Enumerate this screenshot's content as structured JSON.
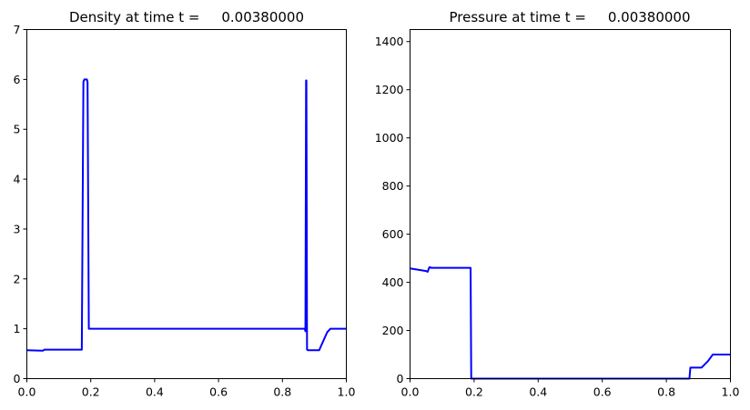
{
  "chart_data": [
    {
      "type": "line",
      "title": "Density at time t =     0.00380000",
      "xlim": [
        0.0,
        1.0
      ],
      "ylim": [
        0,
        7
      ],
      "xticks": [
        "0.0",
        "0.2",
        "0.4",
        "0.6",
        "0.8",
        "1.0"
      ],
      "yticks": [
        "0",
        "1",
        "2",
        "3",
        "4",
        "5",
        "6",
        "7"
      ],
      "grid": false,
      "series": [
        {
          "color": "#0000ff",
          "x": [
            0.0,
            0.05,
            0.055,
            0.172,
            0.177,
            0.18,
            0.188,
            0.19,
            0.194,
            0.86,
            0.87,
            0.872,
            0.874,
            0.875,
            0.877,
            0.88,
            0.9,
            0.915,
            0.94,
            0.95,
            1.0
          ],
          "y": [
            0.57,
            0.56,
            0.58,
            0.58,
            5.95,
            6.0,
            6.0,
            5.95,
            1.0,
            1.0,
            1.0,
            0.95,
            5.98,
            5.98,
            0.58,
            0.57,
            0.57,
            0.57,
            0.93,
            1.0,
            1.0
          ]
        }
      ]
    },
    {
      "type": "line",
      "title": "Pressure at time t =     0.00380000",
      "xlim": [
        0.0,
        1.0
      ],
      "ylim": [
        0,
        1450
      ],
      "xticks": [
        "0.0",
        "0.2",
        "0.4",
        "0.6",
        "0.8",
        "1.0"
      ],
      "yticks": [
        "0",
        "200",
        "400",
        "600",
        "800",
        "1000",
        "1200",
        "1400"
      ],
      "grid": false,
      "series": [
        {
          "color": "#0000ff",
          "x": [
            0.0,
            0.05,
            0.055,
            0.06,
            0.063,
            0.065,
            0.187,
            0.189,
            0.191,
            0.86,
            0.87,
            0.872,
            0.875,
            0.9,
            0.91,
            0.93,
            0.945,
            1.0
          ],
          "y": [
            458,
            447,
            444,
            462,
            463,
            460,
            460,
            460,
            0,
            0,
            0,
            0,
            46,
            46,
            46,
            73,
            100,
            100
          ]
        }
      ]
    }
  ]
}
